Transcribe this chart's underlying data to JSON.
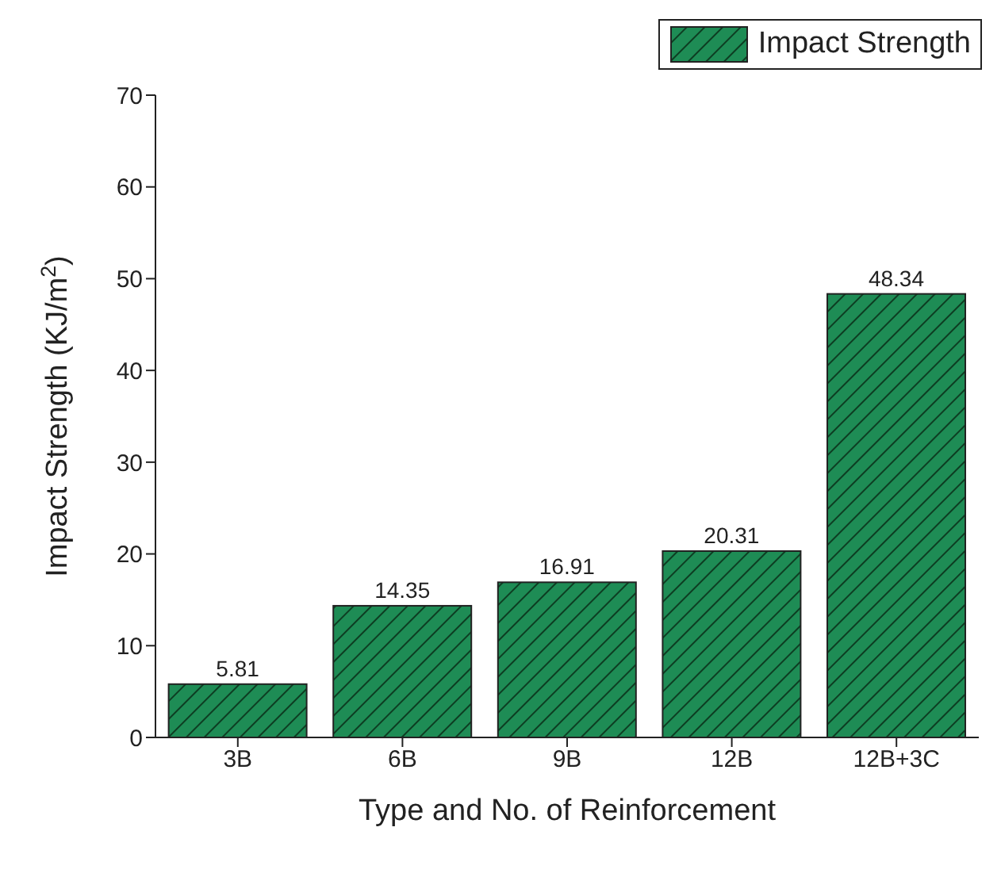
{
  "chart_data": {
    "type": "bar",
    "xlabel": "Type and No. of Reinforcement",
    "ylabel": "Impact Strength (KJ/m$^{2}$)",
    "categories": [
      "3B",
      "6B",
      "9B",
      "12B",
      "12B+3C"
    ],
    "series": [
      {
        "name": "Impact Strength",
        "color": "#1e8c55",
        "values": [
          5.81,
          14.35,
          16.91,
          20.31,
          48.34
        ]
      }
    ],
    "ylim": [
      0,
      70
    ],
    "yticks": [
      0,
      10,
      20,
      30,
      40,
      50,
      60,
      70
    ],
    "data_labels": true,
    "legend": "top right",
    "grid": false
  }
}
